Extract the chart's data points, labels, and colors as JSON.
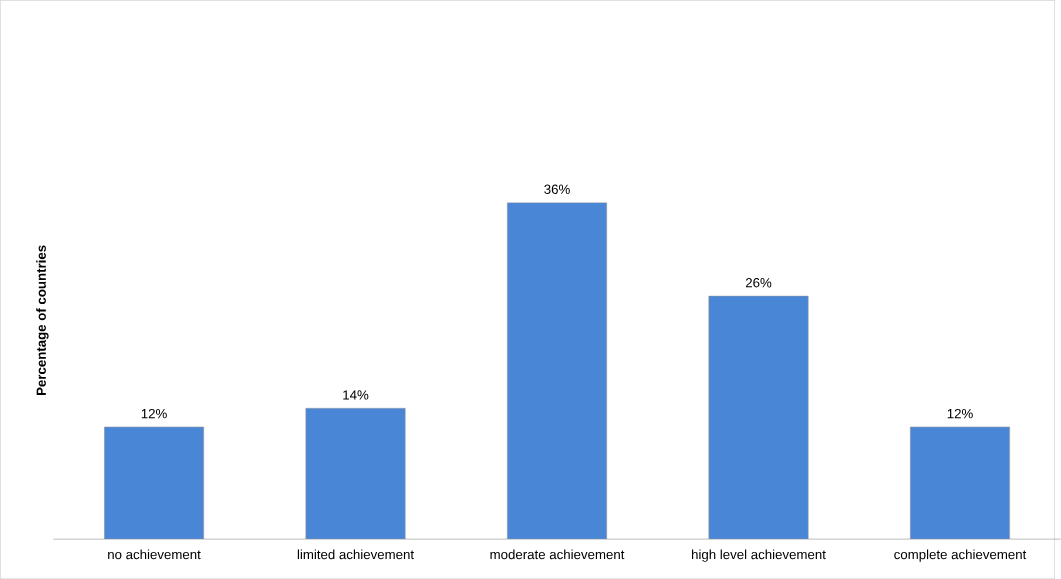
{
  "chart_data": {
    "type": "bar",
    "ylabel": "Percentage of countries",
    "categories": [
      "no achievement",
      "limited achievement",
      "moderate achievement",
      "high level achievement",
      "complete achievement"
    ],
    "values": [
      12,
      14,
      36,
      26,
      12
    ],
    "color": "#4a86d6",
    "value_labels": [
      "12%",
      "14%",
      "36%",
      "26%",
      "12%"
    ]
  }
}
